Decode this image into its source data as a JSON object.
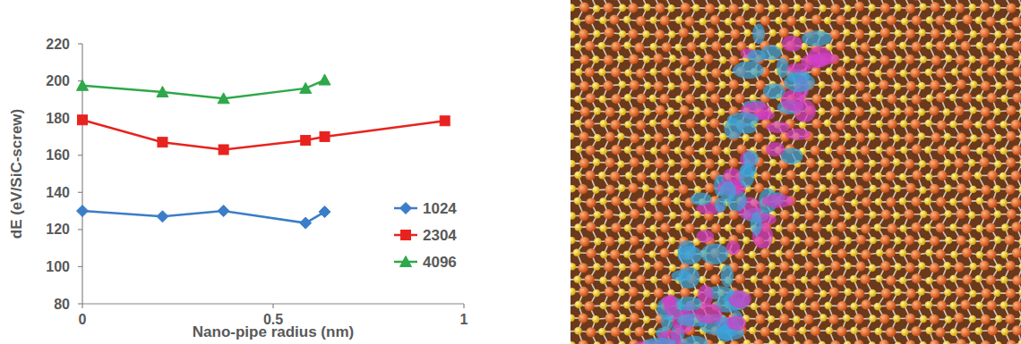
{
  "chart_data": {
    "type": "line",
    "xlabel": "Nano-pipe radius (nm)",
    "ylabel": "dE (eV/SiC-screw)",
    "xlim": [
      0,
      1
    ],
    "xticks": [
      0,
      0.5,
      1
    ],
    "ylim": [
      80,
      220
    ],
    "yticks": [
      80,
      100,
      120,
      140,
      160,
      180,
      200,
      220
    ],
    "grid": false,
    "legend": "right",
    "series": [
      {
        "name": "1024",
        "color": "#3b7dc8",
        "marker": "diamond",
        "line_style": "solid",
        "x": [
          0,
          0.21,
          0.37,
          0.585,
          0.635
        ],
        "values": [
          130,
          127,
          130,
          123.5,
          129.5
        ]
      },
      {
        "name": "2304",
        "color": "#e8231f",
        "marker": "square",
        "line_style": "solid",
        "x": [
          0,
          0.21,
          0.37,
          0.585,
          0.635,
          0.95
        ],
        "values": [
          179,
          167,
          163,
          168,
          170,
          178.5
        ]
      },
      {
        "name": "4096",
        "color": "#2ea84a",
        "marker": "triangle",
        "line_style": "solid",
        "x": [
          0,
          0.21,
          0.37,
          0.585,
          0.635
        ],
        "values": [
          197.5,
          194,
          190.5,
          196,
          200.5
        ]
      }
    ]
  }
}
